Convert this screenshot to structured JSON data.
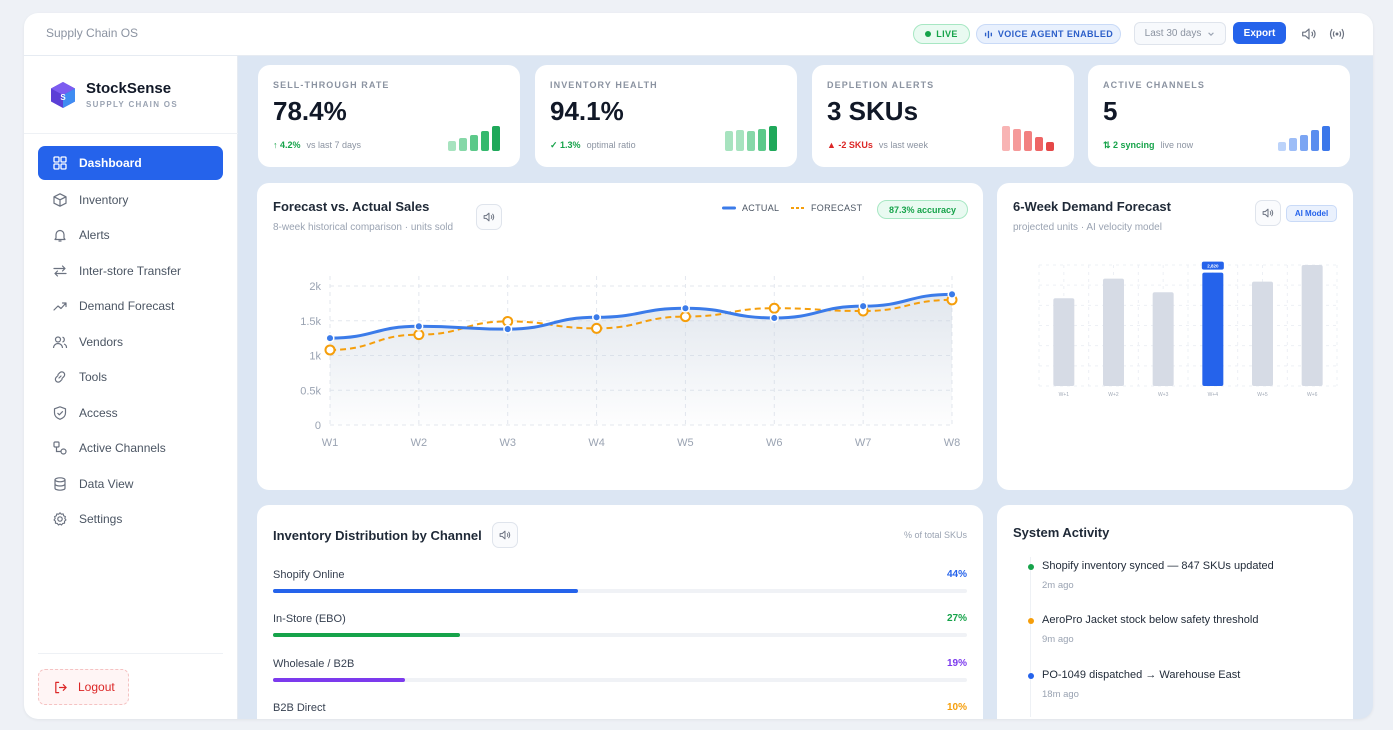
{
  "topbar": {
    "breadcrumb": "Supply Chain OS",
    "live_label": "LIVE",
    "voice_label": "VOICE AGENT ENABLED",
    "range_label": "Last 30 days",
    "export_label": "Export"
  },
  "brand": {
    "name": "StockSense",
    "subtitle": "SUPPLY CHAIN OS"
  },
  "sidebar": {
    "items": [
      {
        "label": "Dashboard",
        "icon": "grid-icon"
      },
      {
        "label": "Inventory",
        "icon": "box-icon"
      },
      {
        "label": "Alerts",
        "icon": "bell-icon"
      },
      {
        "label": "Inter-store Transfer",
        "icon": "transfer-icon"
      },
      {
        "label": "Demand Forecast",
        "icon": "trend-icon"
      },
      {
        "label": "Vendors",
        "icon": "users-icon"
      },
      {
        "label": "Tools",
        "icon": "link-icon"
      },
      {
        "label": "Access",
        "icon": "shield-icon"
      },
      {
        "label": "Active Channels",
        "icon": "channels-icon"
      },
      {
        "label": "Data View",
        "icon": "database-icon"
      },
      {
        "label": "Settings",
        "icon": "gear-icon"
      }
    ],
    "logout_label": "Logout"
  },
  "kpis": [
    {
      "label": "SELL-THROUGH RATE",
      "value": "78.4%",
      "delta": "↑ 4.2%",
      "delta_note": "vs last 7 days",
      "delta_color": "#16a34a",
      "bars": [
        0.4,
        0.5,
        0.6,
        0.75,
        0.95
      ],
      "bar_colors": [
        "#a7e3bf",
        "#86d8a8",
        "#5cc98a",
        "#34b96d",
        "#1fa85a"
      ]
    },
    {
      "label": "INVENTORY HEALTH",
      "value": "94.1%",
      "delta": "✓ 1.3%",
      "delta_note": "optimal ratio",
      "delta_color": "#16a34a",
      "bars": [
        0.75,
        0.8,
        0.75,
        0.85,
        0.95
      ],
      "bar_colors": [
        "#a7e3bf",
        "#a7e3bf",
        "#86d8a8",
        "#5cc98a",
        "#1fa85a"
      ]
    },
    {
      "label": "DEPLETION ALERTS",
      "value": "3 SKUs",
      "delta": "▲ -2 SKUs",
      "delta_note": "vs last week",
      "delta_color": "#dc2626",
      "bars": [
        0.95,
        0.85,
        0.75,
        0.55,
        0.35
      ],
      "bar_colors": [
        "#f8b4b4",
        "#f59a9a",
        "#f28080",
        "#ee6565",
        "#e54848"
      ]
    },
    {
      "label": "ACTIVE CHANNELS",
      "value": "5",
      "delta": "⇅ 2 syncing",
      "delta_note": "live now",
      "delta_color": "#16a34a",
      "bars": [
        0.35,
        0.5,
        0.6,
        0.8,
        0.95
      ],
      "bar_colors": [
        "#bcd3fa",
        "#9dbdf7",
        "#7ba5f3",
        "#5a8def",
        "#3b77ea"
      ]
    }
  ],
  "forecast_chart": {
    "title": "Forecast vs. Actual Sales",
    "subtitle": "8-week historical comparison · units sold",
    "legend_actual": "ACTUAL",
    "legend_forecast": "FORECAST",
    "accuracy_label": "87.3% accuracy"
  },
  "demand_chart": {
    "title": "6-Week Demand Forecast",
    "subtitle": "projected units · AI velocity model",
    "badge": "AI Model"
  },
  "distribution": {
    "title": "Inventory Distribution by Channel",
    "note": "% of total SKUs",
    "rows": [
      {
        "name": "Shopify Online",
        "pct": "44%",
        "value": 0.44,
        "color": "#2563eb"
      },
      {
        "name": "In-Store (EBO)",
        "pct": "27%",
        "value": 0.27,
        "color": "#16a34a"
      },
      {
        "name": "Wholesale / B2B",
        "pct": "19%",
        "value": 0.19,
        "color": "#7c3aed"
      },
      {
        "name": "B2B Direct",
        "pct": "10%",
        "value": 0.1,
        "color": "#f59e0b"
      }
    ]
  },
  "activity": {
    "title": "System Activity",
    "items": [
      {
        "message": "Shopify inventory synced — 847 SKUs updated",
        "time": "2m ago",
        "color": "#16a34a"
      },
      {
        "message": "AeroPro Jacket stock below safety threshold",
        "time": "9m ago",
        "color": "#f59e0b"
      },
      {
        "message": "PO-1049 dispatched → Warehouse East",
        "time": "18m ago",
        "color": "#2563eb"
      }
    ]
  },
  "chart_data": [
    {
      "type": "line",
      "title": "Forecast vs. Actual Sales",
      "x": [
        "W1",
        "W2",
        "W3",
        "W4",
        "W5",
        "W6",
        "W7",
        "W8"
      ],
      "y_ticks": [
        "0",
        "0.5k",
        "1k",
        "1.5k",
        "2k"
      ],
      "ylim": [
        0,
        2000
      ],
      "grid": true,
      "legend_position": "top-right",
      "series": [
        {
          "name": "ACTUAL",
          "values": [
            1250,
            1420,
            1380,
            1550,
            1680,
            1540,
            1710,
            1880
          ],
          "color": "#3b7be9"
        },
        {
          "name": "FORECAST",
          "values": [
            1080,
            1300,
            1490,
            1390,
            1560,
            1680,
            1640,
            1800
          ],
          "color": "#f59e0b"
        }
      ]
    },
    {
      "type": "bar",
      "title": "6-Week Demand Forecast",
      "categories": [
        "W+1",
        "W+2",
        "W+3",
        "W+4",
        "W+5",
        "W+6"
      ],
      "values": [
        0.58,
        0.71,
        0.62,
        0.75,
        0.69,
        0.8
      ],
      "highlight_index": 3,
      "highlight_label": "2,820",
      "grid": true
    }
  ]
}
